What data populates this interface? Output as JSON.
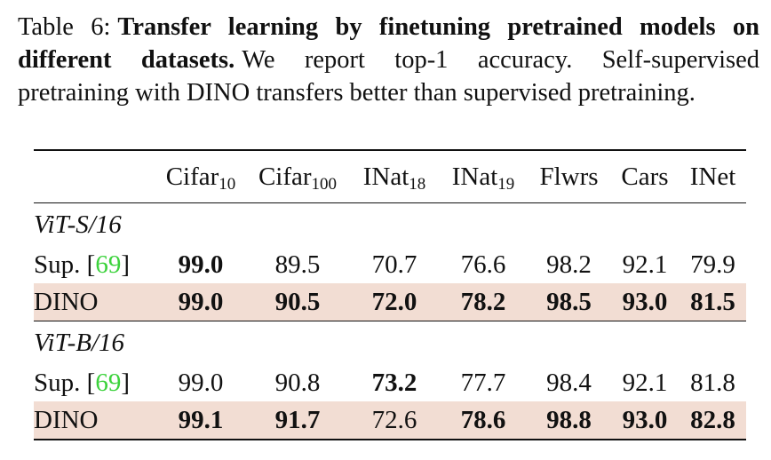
{
  "caption": {
    "table_number": "Table 6:",
    "title": "Transfer learning by finetuning pretrained models on different datasets.",
    "body": "We report top-1 accuracy. Self-supervised pretraining with DINO transfers better than supervised pretraining."
  },
  "table": {
    "columns": [
      {
        "base": "Cifar",
        "sub": "10"
      },
      {
        "base": "Cifar",
        "sub": "100"
      },
      {
        "base": "INat",
        "sub": "18"
      },
      {
        "base": "INat",
        "sub": "19"
      },
      {
        "base": "Flwrs",
        "sub": ""
      },
      {
        "base": "Cars",
        "sub": ""
      },
      {
        "base": "INet",
        "sub": ""
      }
    ],
    "groups": [
      {
        "name": "ViT-S/16",
        "rows": [
          {
            "label": "Sup.",
            "cite": "69",
            "highlight": false,
            "values": [
              "99.0",
              "89.5",
              "70.7",
              "76.6",
              "98.2",
              "92.1",
              "79.9"
            ],
            "bold": [
              true,
              false,
              false,
              false,
              false,
              false,
              false
            ]
          },
          {
            "label": "DINO",
            "cite": "",
            "highlight": true,
            "values": [
              "99.0",
              "90.5",
              "72.0",
              "78.2",
              "98.5",
              "93.0",
              "81.5"
            ],
            "bold": [
              true,
              true,
              true,
              true,
              true,
              true,
              true
            ]
          }
        ]
      },
      {
        "name": "ViT-B/16",
        "rows": [
          {
            "label": "Sup.",
            "cite": "69",
            "highlight": false,
            "values": [
              "99.0",
              "90.8",
              "73.2",
              "77.7",
              "98.4",
              "92.1",
              "81.8"
            ],
            "bold": [
              false,
              false,
              true,
              false,
              false,
              false,
              false
            ]
          },
          {
            "label": "DINO",
            "cite": "",
            "highlight": true,
            "values": [
              "99.1",
              "91.7",
              "72.6",
              "78.6",
              "98.8",
              "93.0",
              "82.8"
            ],
            "bold": [
              true,
              true,
              false,
              true,
              true,
              true,
              true
            ]
          }
        ]
      }
    ]
  },
  "colors": {
    "highlight_row": "#f2ddd3",
    "citation": "#3cd23c",
    "text": "#111111"
  }
}
